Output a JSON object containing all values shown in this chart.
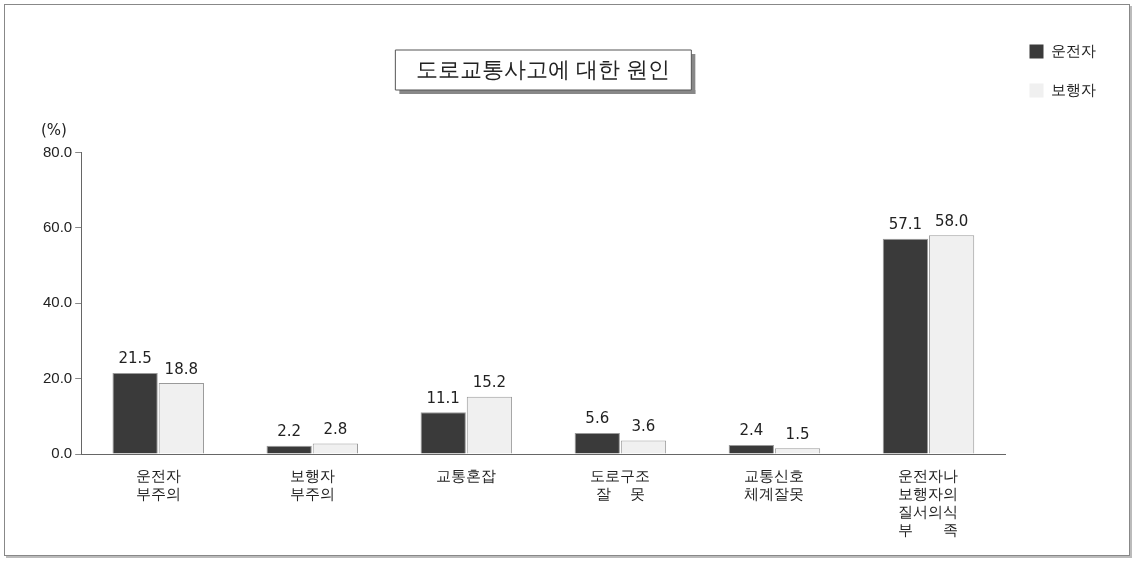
{
  "chart_data": {
    "type": "bar",
    "title": "도로교통사고에 대한 원인",
    "ylabel": "(%)",
    "categories": [
      "운전자\n부주의",
      "보행자\n부주의",
      "교통혼잡",
      "도로구조\n잘　 못",
      "교통신호\n체계잘못",
      "운전자나\n보행자의\n질서의식\n부　　족"
    ],
    "series": [
      {
        "name": "운전자",
        "color": "#3a3a3a",
        "values": [
          21.5,
          2.2,
          11.1,
          5.6,
          2.4,
          57.1
        ],
        "value_labels": [
          "21.5",
          "2.2",
          "11.1",
          "5.6",
          "2.4",
          "57.1"
        ]
      },
      {
        "name": "보행자",
        "color": "#f0f0f0",
        "values": [
          18.8,
          2.8,
          15.2,
          3.6,
          1.5,
          58.0
        ],
        "value_labels": [
          "18.8",
          "2.8",
          "15.2",
          "3.6",
          "1.5",
          "58.0"
        ]
      }
    ],
    "ylim": [
      0,
      80
    ],
    "yticks": [
      {
        "value": 0,
        "label": "0.0"
      },
      {
        "value": 20,
        "label": "20.0"
      },
      {
        "value": 40,
        "label": "40.0"
      },
      {
        "value": 60,
        "label": "60.0"
      },
      {
        "value": 80,
        "label": "80.0"
      }
    ],
    "grid": false,
    "legend": "top right"
  }
}
